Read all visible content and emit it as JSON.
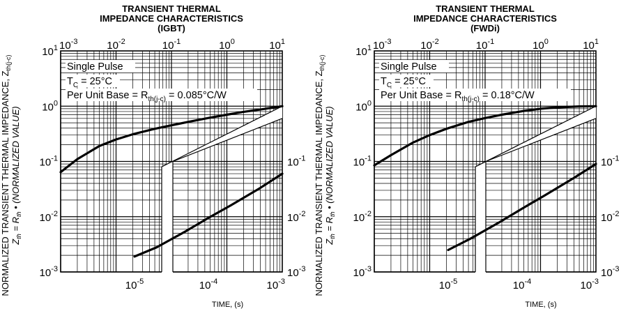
{
  "chart_data": [
    {
      "type": "line",
      "title_lines": [
        "TRANSIENT THERMAL",
        "IMPEDANCE CHARACTERISTICS",
        "(IGBT)"
      ],
      "ylabel": {
        "main": "NORMALIZED TRANSIENT THERMAL IMPEDANCE, Z",
        "main_sub": "th(j-c)",
        "sub_prefix": "Z",
        "sub_prefix_sub": "th",
        "sub_mid": " = R",
        "sub_mid_sub": "th",
        "sub_rest": " • (NORMALIZED VALUE)"
      },
      "xlabel": "TIME, (s)",
      "y_scale": "log",
      "ylim": [
        0.001,
        10
      ],
      "y_tick_labels": [
        {
          "base": "10",
          "exp": "1",
          "value": 10
        },
        {
          "base": "10",
          "exp": "0",
          "value": 1
        },
        {
          "base": "10",
          "exp": "-1",
          "value": 0.1
        },
        {
          "base": "10",
          "exp": "-2",
          "value": 0.01
        },
        {
          "base": "10",
          "exp": "-3",
          "value": 0.001
        }
      ],
      "x_scale": "log",
      "x_top": {
        "range": [
          0.001,
          10
        ],
        "tick_labels": [
          {
            "base": "10",
            "exp": "-3",
            "value": 0.001
          },
          {
            "base": "10",
            "exp": "-2",
            "value": 0.01
          },
          {
            "base": "10",
            "exp": "-1",
            "value": 0.1
          },
          {
            "base": "10",
            "exp": "0",
            "value": 1
          },
          {
            "base": "10",
            "exp": "1",
            "value": 10
          }
        ]
      },
      "x_bottom": {
        "range": [
          1e-06,
          0.001
        ],
        "tick_labels": [
          {
            "base": "10",
            "exp": "-5",
            "value": 1e-05
          },
          {
            "base": "10",
            "exp": "-4",
            "value": 0.0001
          },
          {
            "base": "10",
            "exp": "-3",
            "value": 0.001
          }
        ]
      },
      "right_axis_tick_labels": [
        {
          "base": "10",
          "exp": "-1",
          "value": 0.1
        },
        {
          "base": "10",
          "exp": "-2",
          "value": 0.01
        },
        {
          "base": "10",
          "exp": "-3",
          "value": 0.001
        }
      ],
      "annotations": [
        {
          "text": "Single Pulse"
        },
        {
          "text": "T",
          "sub": "C",
          "rest": " = 25°C"
        },
        {
          "text": "Per Unit Base = R",
          "sub": "th(j-c)",
          "rest": " = 0.085°C/W"
        }
      ],
      "series": [
        {
          "axis": "top",
          "x": [
            0.001,
            0.002,
            0.005,
            0.01,
            0.02,
            0.05,
            0.1,
            0.2,
            0.5,
            1,
            2,
            5,
            10
          ],
          "values": [
            0.064,
            0.11,
            0.19,
            0.25,
            0.31,
            0.39,
            0.45,
            0.52,
            0.62,
            0.7,
            0.79,
            0.9,
            1.0
          ]
        },
        {
          "axis": "bottom",
          "x": [
            1e-05,
            2e-05,
            5e-05,
            0.0001,
            0.0002,
            0.0005,
            0.001
          ],
          "values": [
            0.0019,
            0.0028,
            0.0055,
            0.0095,
            0.016,
            0.033,
            0.06
          ]
        }
      ]
    },
    {
      "type": "line",
      "title_lines": [
        "TRANSIENT THERMAL",
        "IMPEDANCE CHARACTERISTICS",
        "(FWDi)"
      ],
      "ylabel": {
        "main": "NORMALIZED TRANSIENT THERMAL IMPEDANCE, Z",
        "main_sub": "th(j-c)",
        "sub_prefix": "Z",
        "sub_prefix_sub": "th",
        "sub_mid": " = R",
        "sub_mid_sub": "th",
        "sub_rest": " • (NORMALIZED VALUE)"
      },
      "xlabel": "TIME, (s)",
      "y_scale": "log",
      "ylim": [
        0.001,
        10
      ],
      "y_tick_labels": [
        {
          "base": "10",
          "exp": "1",
          "value": 10
        },
        {
          "base": "10",
          "exp": "0",
          "value": 1
        },
        {
          "base": "10",
          "exp": "-1",
          "value": 0.1
        },
        {
          "base": "10",
          "exp": "-2",
          "value": 0.01
        },
        {
          "base": "10",
          "exp": "-3",
          "value": 0.001
        }
      ],
      "x_scale": "log",
      "x_top": {
        "range": [
          0.001,
          10
        ],
        "tick_labels": [
          {
            "base": "10",
            "exp": "-3",
            "value": 0.001
          },
          {
            "base": "10",
            "exp": "-2",
            "value": 0.01
          },
          {
            "base": "10",
            "exp": "-1",
            "value": 0.1
          },
          {
            "base": "10",
            "exp": "0",
            "value": 1
          },
          {
            "base": "10",
            "exp": "1",
            "value": 10
          }
        ]
      },
      "x_bottom": {
        "range": [
          1e-06,
          0.001
        ],
        "tick_labels": [
          {
            "base": "10",
            "exp": "-5",
            "value": 1e-05
          },
          {
            "base": "10",
            "exp": "-4",
            "value": 0.0001
          },
          {
            "base": "10",
            "exp": "-3",
            "value": 0.001
          }
        ]
      },
      "right_axis_tick_labels": [
        {
          "base": "10",
          "exp": "-1",
          "value": 0.1
        },
        {
          "base": "10",
          "exp": "-2",
          "value": 0.01
        },
        {
          "base": "10",
          "exp": "-3",
          "value": 0.001
        }
      ],
      "annotations": [
        {
          "text": "Single Pulse"
        },
        {
          "text": "T",
          "sub": "C",
          "rest": " = 25°C"
        },
        {
          "text": "Per Unit Base = R",
          "sub": "th(j-c)",
          "rest": " = 0.18°C/W"
        }
      ],
      "series": [
        {
          "axis": "top",
          "x": [
            0.001,
            0.002,
            0.005,
            0.01,
            0.02,
            0.05,
            0.1,
            0.2,
            0.5,
            1,
            2,
            5,
            10
          ],
          "values": [
            0.085,
            0.13,
            0.22,
            0.3,
            0.39,
            0.52,
            0.61,
            0.7,
            0.82,
            0.9,
            0.95,
            0.99,
            1.0
          ]
        },
        {
          "axis": "bottom",
          "x": [
            1e-05,
            2e-05,
            5e-05,
            0.0001,
            0.0002,
            0.0005,
            0.001
          ],
          "values": [
            0.0025,
            0.004,
            0.008,
            0.014,
            0.024,
            0.05,
            0.09
          ]
        }
      ]
    }
  ]
}
